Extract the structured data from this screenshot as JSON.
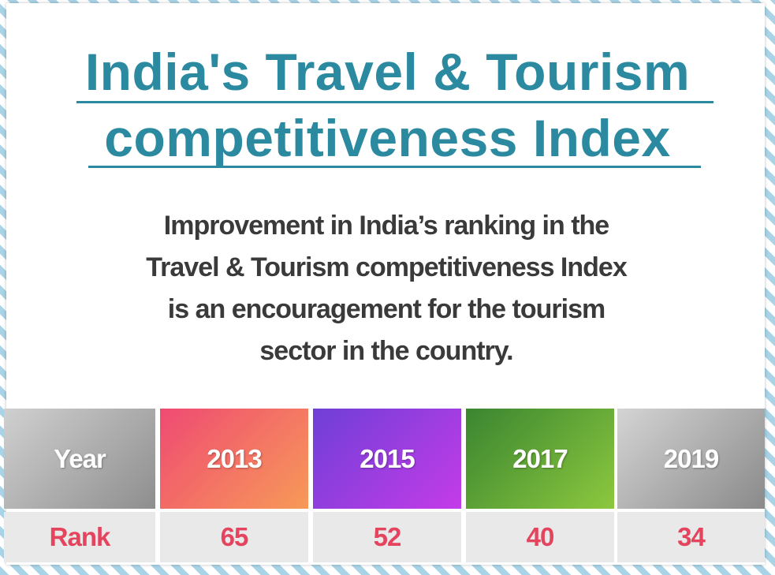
{
  "title_lines": [
    "India's Travel & Tourism",
    "competitiveness Index"
  ],
  "description": "Improvement in India’s ranking in the Travel & Tourism competitiveness Index is an encouragement for the tourism sector in the country.",
  "table": {
    "header": [
      "Year",
      "2013",
      "2015",
      "2017",
      "2019"
    ],
    "rows": [
      [
        "Rank",
        "65",
        "52",
        "40",
        "34"
      ]
    ]
  }
}
